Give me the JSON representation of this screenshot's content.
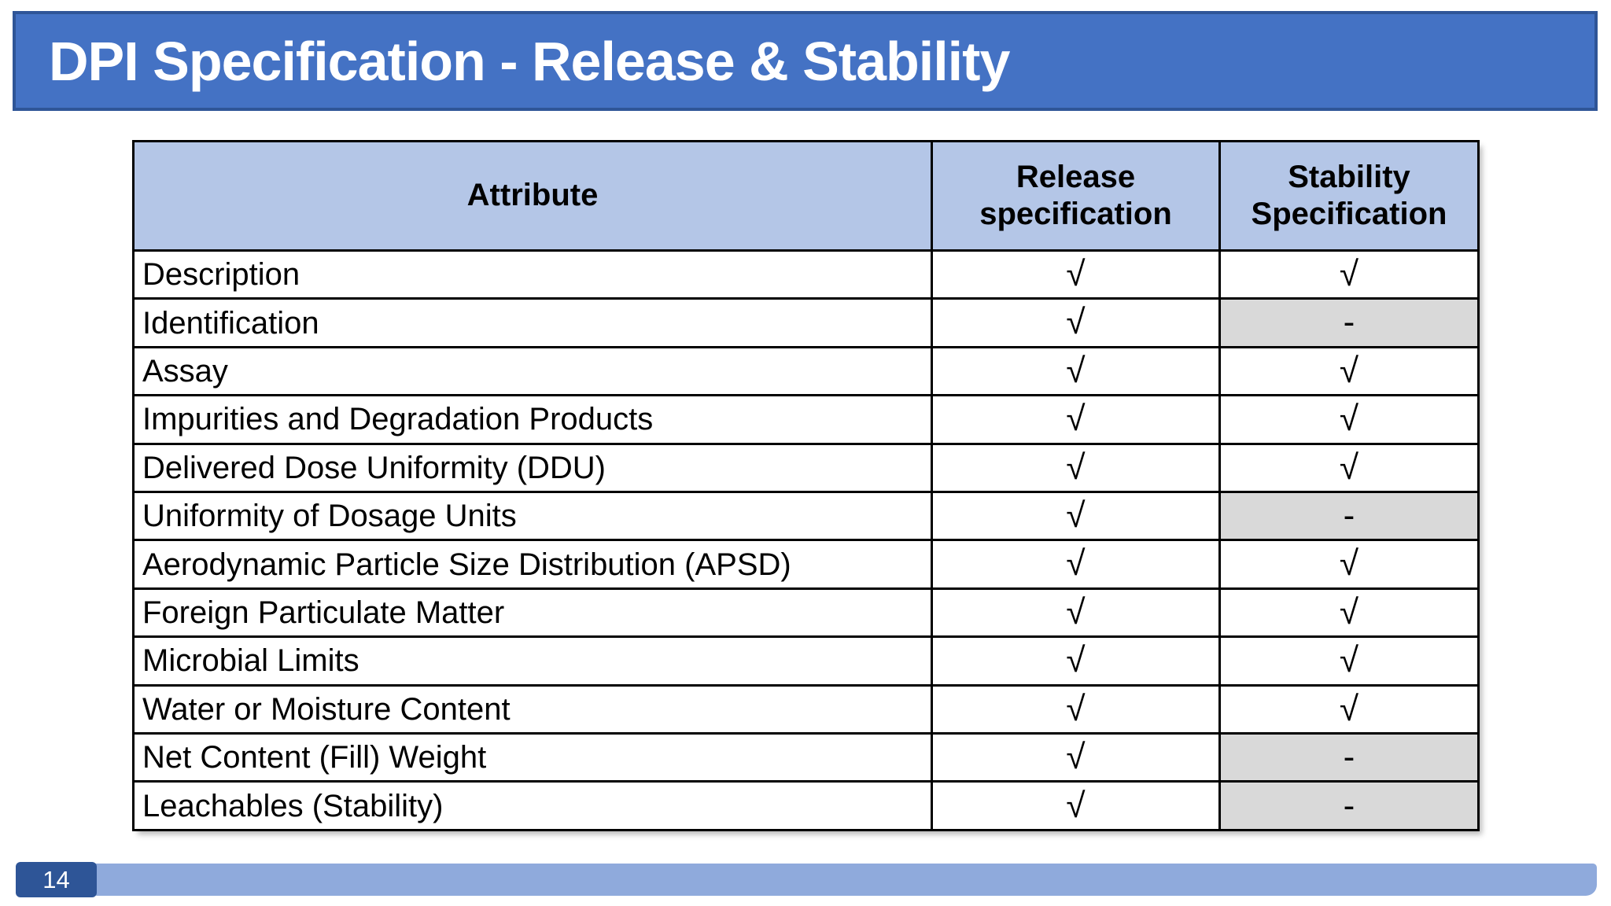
{
  "slide": {
    "title": "DPI Specification - Release & Stability",
    "page_number": "14"
  },
  "table": {
    "columns": [
      "Attribute",
      "Release specification",
      "Stability Specification"
    ],
    "check_symbol": "√",
    "dash_symbol": "-",
    "rows": [
      {
        "attribute": "Description",
        "release": "√",
        "stability": "√"
      },
      {
        "attribute": "Identification",
        "release": "√",
        "stability": "-"
      },
      {
        "attribute": "Assay",
        "release": "√",
        "stability": "√"
      },
      {
        "attribute": "Impurities and Degradation Products",
        "release": "√",
        "stability": "√"
      },
      {
        "attribute": "Delivered Dose Uniformity (DDU)",
        "release": "√",
        "stability": "√"
      },
      {
        "attribute": "Uniformity of Dosage Units",
        "release": "√",
        "stability": "-"
      },
      {
        "attribute": "Aerodynamic Particle Size Distribution (APSD)",
        "release": "√",
        "stability": "√"
      },
      {
        "attribute": "Foreign Particulate Matter",
        "release": "√",
        "stability": "√"
      },
      {
        "attribute": "Microbial Limits",
        "release": "√",
        "stability": "√"
      },
      {
        "attribute": "Water or Moisture Content",
        "release": "√",
        "stability": "√"
      },
      {
        "attribute": "Net Content (Fill) Weight",
        "release": "√",
        "stability": "-"
      },
      {
        "attribute": "Leachables (Stability)",
        "release": "√",
        "stability": "-"
      }
    ]
  },
  "colors": {
    "title_fill": "#4472c4",
    "title_border": "#2f5597",
    "title_text": "#ffffff",
    "header_fill": "#b4c6e7",
    "na_fill": "#d9d9d9",
    "grid_line": "#000000",
    "footer_light": "#8faadc",
    "footer_dark": "#2e5597"
  }
}
